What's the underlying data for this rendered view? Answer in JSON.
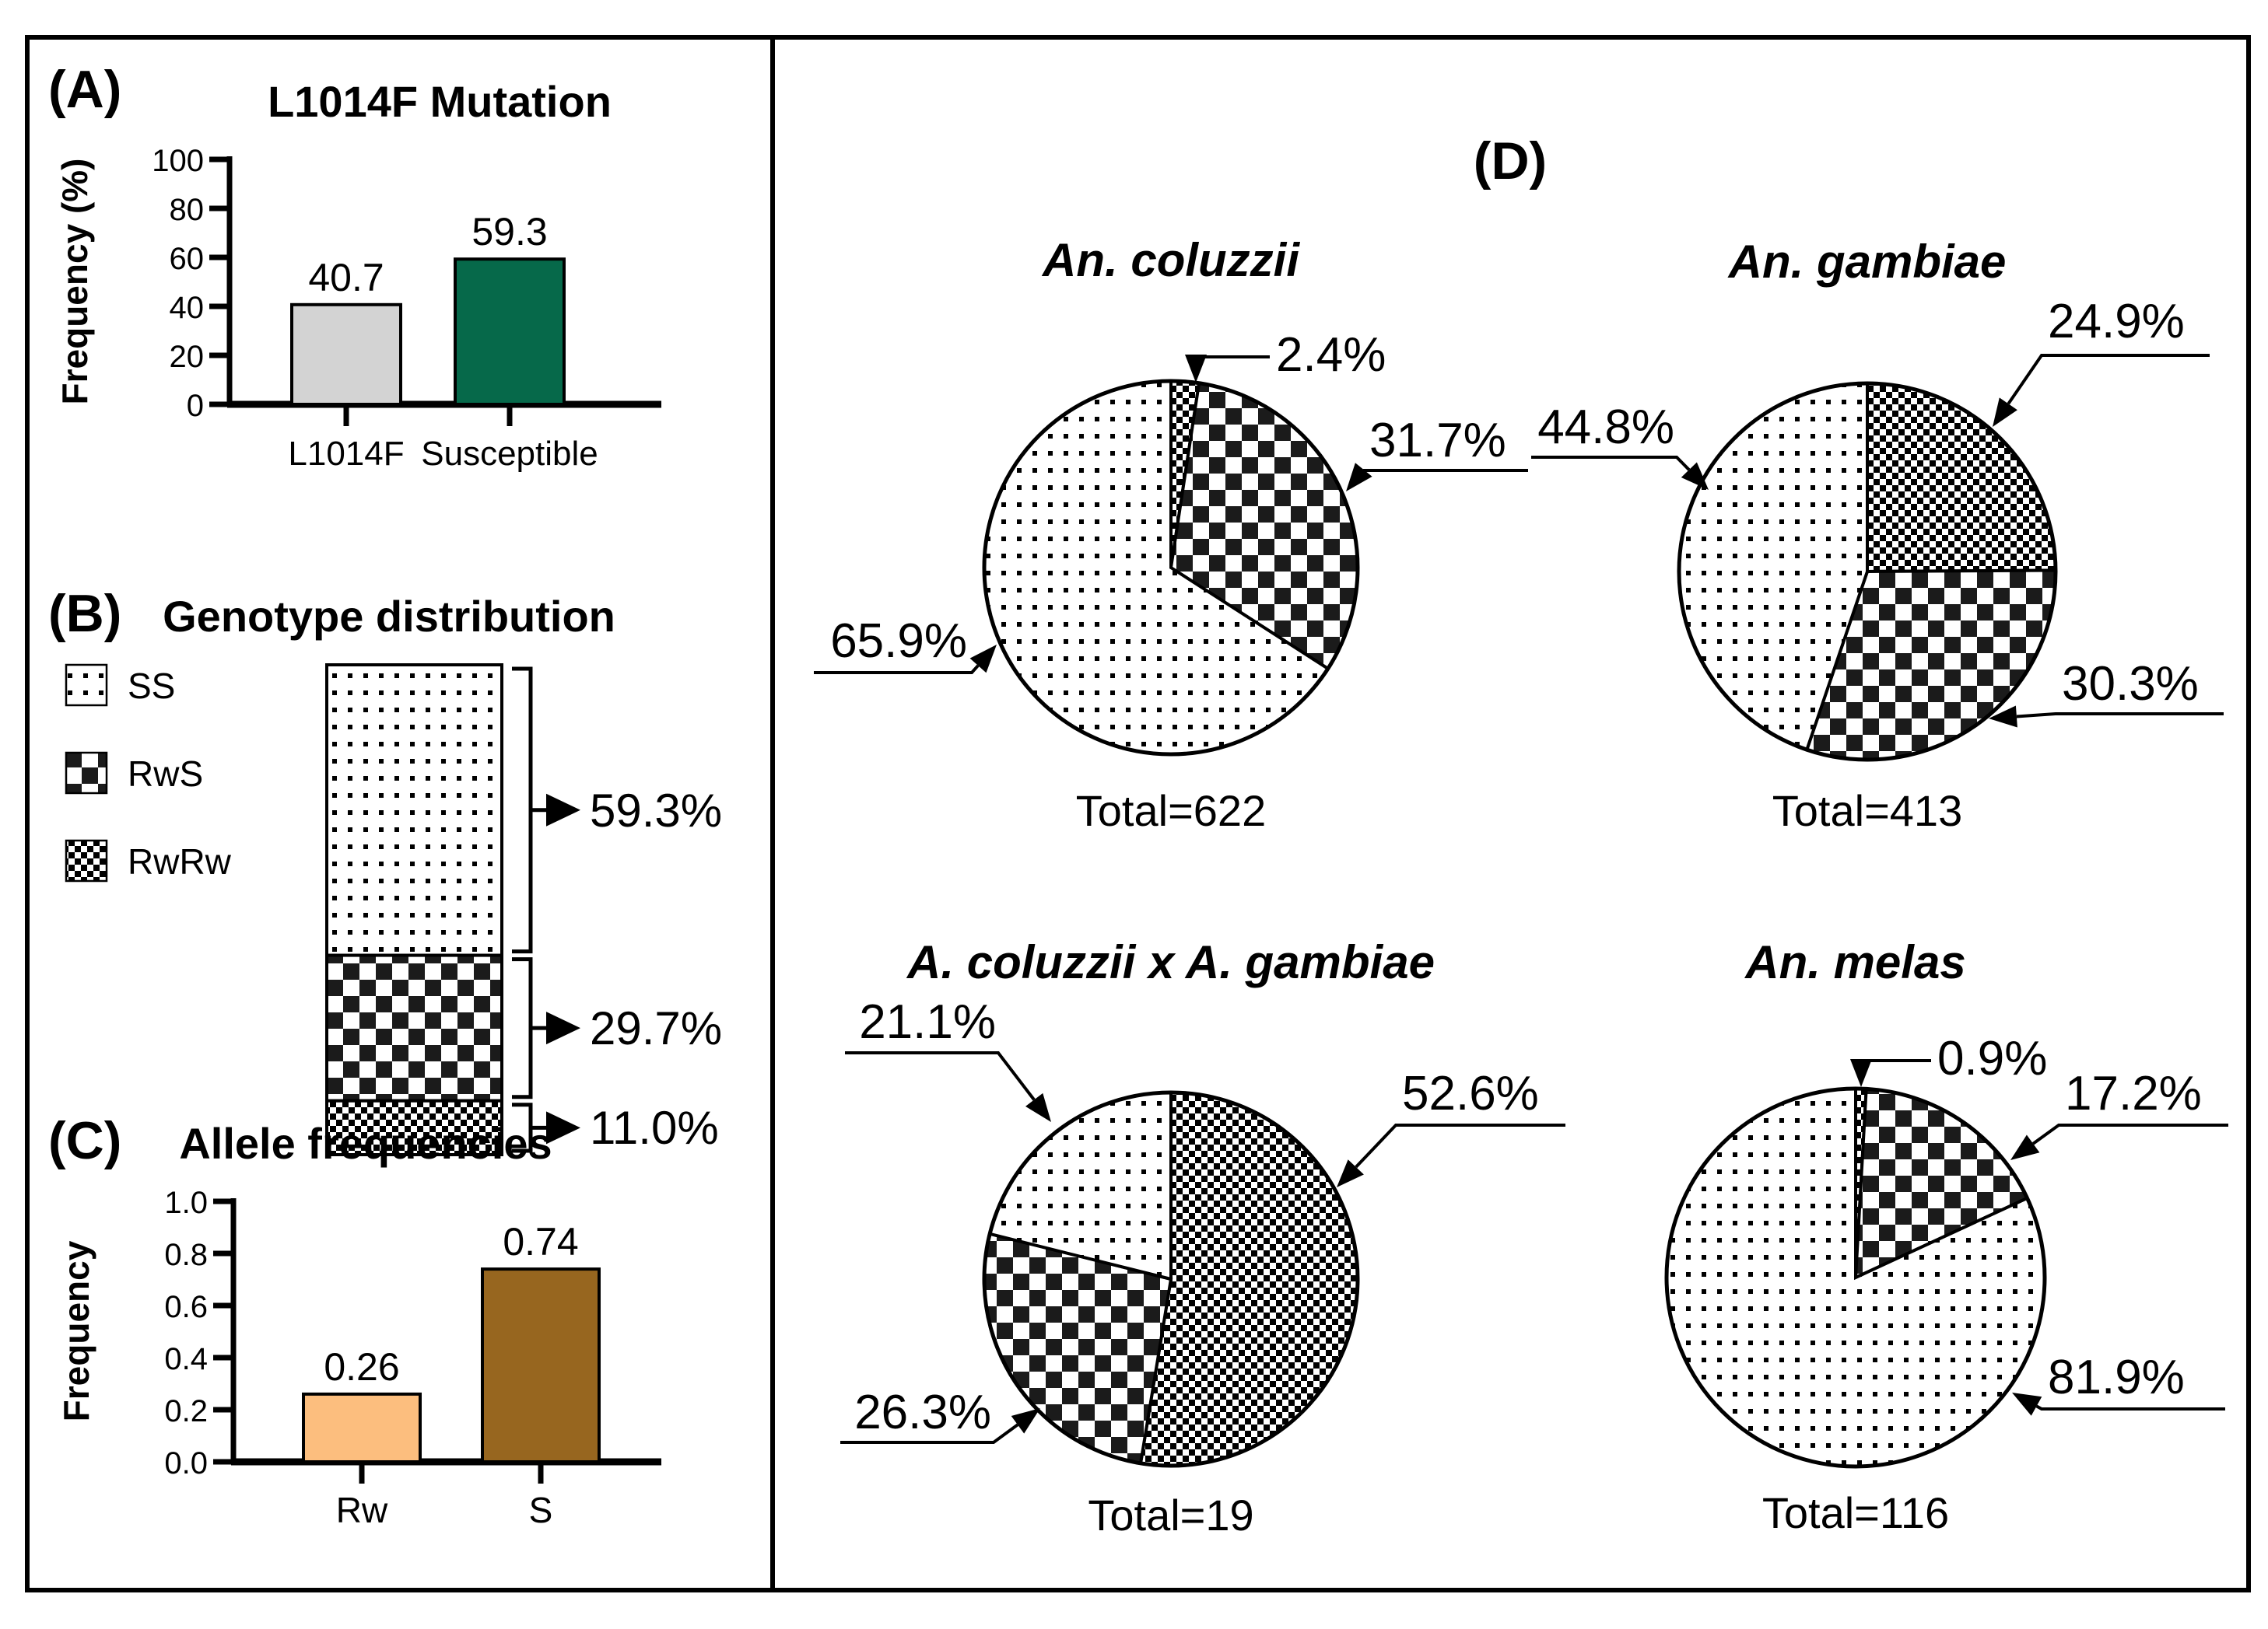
{
  "panel_letters": {
    "a": "(A)",
    "b": "(B)",
    "c": "(C)",
    "d": "(D)"
  },
  "colors": {
    "bar_gray": "#d3d3d3",
    "bar_green": "#06694a",
    "bar_peach": "#fcbe7e",
    "bar_brown": "#97661f",
    "ink": "#000000",
    "background": "#ffffff"
  },
  "chart_data": [
    {
      "id": "mutation",
      "type": "bar",
      "title": "L1014F Mutation",
      "ylabel": "Frequency (%)",
      "ylim": [
        0,
        100
      ],
      "ytick_labels": [
        "100",
        "80",
        "60",
        "40",
        "20",
        "0"
      ],
      "categories": [
        "L1014F",
        "Susceptible"
      ],
      "values": [
        40.7,
        59.3
      ],
      "value_labels": [
        "40.7",
        "59.3"
      ],
      "bar_colors": [
        "#d3d3d3",
        "#06694a"
      ]
    },
    {
      "id": "genotype",
      "type": "stacked-bar",
      "title": "Genotype distribution",
      "legend": [
        "SS",
        "RwS",
        "RwRw"
      ],
      "categories": [
        "SS",
        "RwS",
        "RwRw"
      ],
      "values": [
        59.3,
        29.7,
        11.0
      ],
      "segment_labels": [
        "59.3%",
        "29.7%",
        "11.0%"
      ],
      "patterns": [
        "ss",
        "rws",
        "rwrw"
      ]
    },
    {
      "id": "allele",
      "type": "bar",
      "title": "Allele frequencies",
      "ylabel": "Frequency",
      "ylim": [
        0,
        1
      ],
      "ytick_labels": [
        "1.0",
        "0.8",
        "0.6",
        "0.4",
        "0.2",
        "0.0"
      ],
      "categories": [
        "Rw",
        "S"
      ],
      "values": [
        0.26,
        0.74
      ],
      "value_labels": [
        "0.26",
        "0.74"
      ],
      "bar_colors": [
        "#fcbe7e",
        "#97661f"
      ]
    },
    {
      "id": "pie-coluzzii",
      "type": "pie",
      "title": "An. coluzzii",
      "total_label": "Total=622",
      "slices": [
        {
          "name": "RwRw",
          "pct": 2.4,
          "label": "2.4%"
        },
        {
          "name": "RwS",
          "pct": 31.7,
          "label": "31.7%"
        },
        {
          "name": "SS",
          "pct": 65.9,
          "label": "65.9%"
        }
      ]
    },
    {
      "id": "pie-gambiae",
      "type": "pie",
      "title": "An. gambiae",
      "total_label": "Total=413",
      "slices": [
        {
          "name": "RwRw",
          "pct": 24.9,
          "label": "24.9%"
        },
        {
          "name": "RwS",
          "pct": 30.3,
          "label": "30.3%"
        },
        {
          "name": "SS",
          "pct": 44.8,
          "label": "44.8%"
        }
      ]
    },
    {
      "id": "pie-hybrid",
      "type": "pie",
      "title": "A. coluzzii x A. gambiae",
      "total_label": "Total=19",
      "slices": [
        {
          "name": "RwRw",
          "pct": 52.6,
          "label": "52.6%"
        },
        {
          "name": "RwS",
          "pct": 26.3,
          "label": "26.3%"
        },
        {
          "name": "SS",
          "pct": 21.1,
          "label": "21.1%"
        }
      ]
    },
    {
      "id": "pie-melas",
      "type": "pie",
      "title": "An. melas",
      "total_label": "Total=116",
      "slices": [
        {
          "name": "RwRw",
          "pct": 0.9,
          "label": "0.9%"
        },
        {
          "name": "RwS",
          "pct": 17.2,
          "label": "17.2%"
        },
        {
          "name": "SS",
          "pct": 81.9,
          "label": "81.9%"
        }
      ]
    }
  ]
}
